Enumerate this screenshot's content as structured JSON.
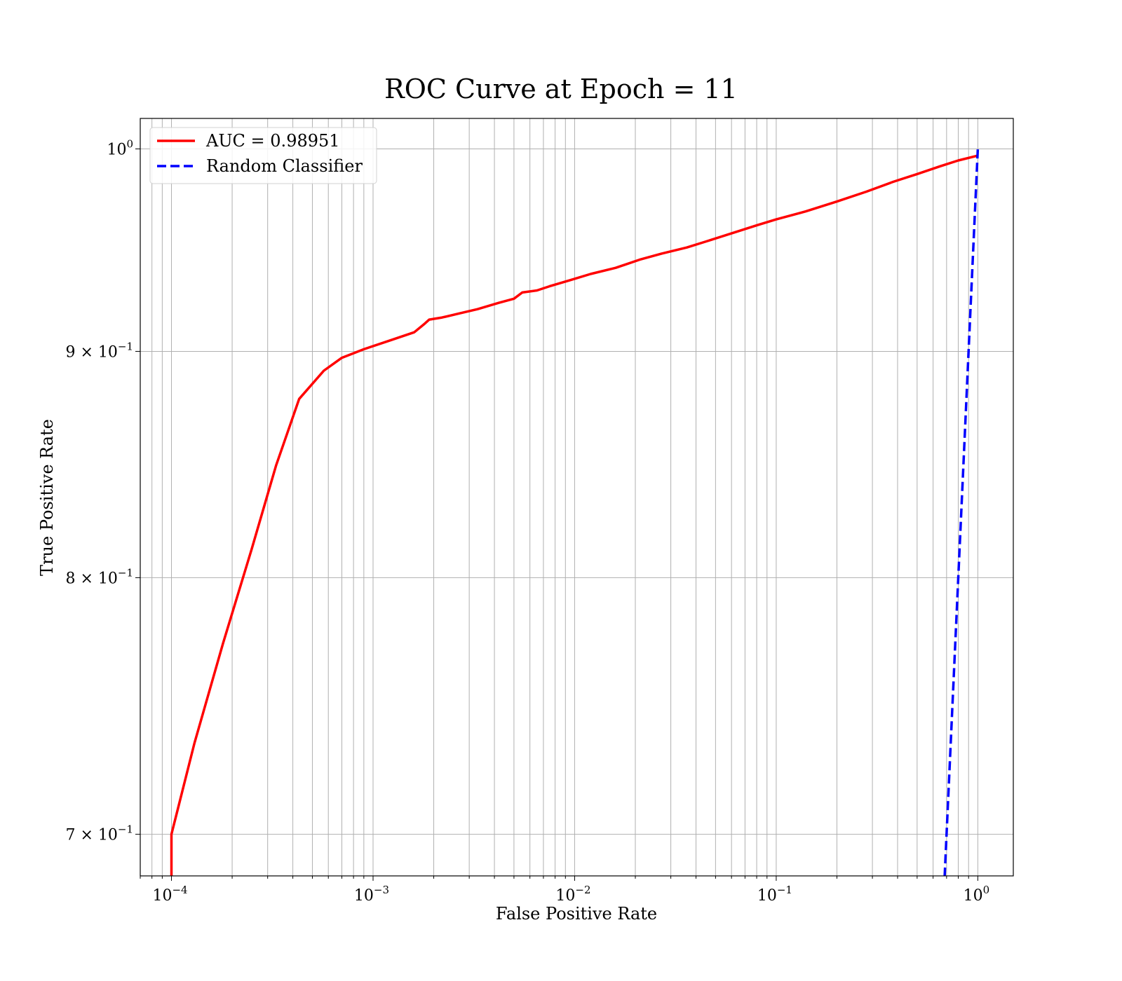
{
  "chart_data": {
    "type": "line",
    "title": "ROC Curve at Epoch = 11",
    "xlabel": "False Positive Rate",
    "ylabel": "True Positive Rate",
    "xscale": "log",
    "yscale": "log",
    "xlim": [
      7e-05,
      1.5
    ],
    "ylim": [
      0.685,
      1.016
    ],
    "grid": true,
    "legend_position": "upper-left",
    "xticks": [
      {
        "value": 0.0001,
        "base": "10",
        "exp": "−4"
      },
      {
        "value": 0.001,
        "base": "10",
        "exp": "−3"
      },
      {
        "value": 0.01,
        "base": "10",
        "exp": "−2"
      },
      {
        "value": 0.1,
        "base": "10",
        "exp": "−1"
      },
      {
        "value": 1,
        "base": "10",
        "exp": "0"
      }
    ],
    "yticks": [
      {
        "value": 1.0,
        "base": "10",
        "exp": "0"
      },
      {
        "value": 0.9,
        "base": "9 × 10",
        "exp": "−1"
      },
      {
        "value": 0.8,
        "base": "8 × 10",
        "exp": "−1"
      },
      {
        "value": 0.7,
        "base": "7 × 10",
        "exp": "−1"
      }
    ],
    "series": [
      {
        "name": "AUC = 0.98951",
        "color": "#ff0000",
        "style": "solid",
        "x": [
          0.0001,
          0.0001,
          0.0001,
          0.00013,
          0.00018,
          0.00025,
          0.00033,
          0.00043,
          0.00057,
          0.0007,
          0.0009,
          0.0012,
          0.0016,
          0.0018,
          0.0019,
          0.0022,
          0.0027,
          0.0033,
          0.0042,
          0.005,
          0.0055,
          0.0065,
          0.0075,
          0.0095,
          0.012,
          0.016,
          0.021,
          0.027,
          0.036,
          0.045,
          0.06,
          0.08,
          0.1,
          0.14,
          0.2,
          0.28,
          0.38,
          0.5,
          0.65,
          0.8,
          1.0
        ],
        "y": [
          0.685,
          0.69,
          0.7,
          0.734,
          0.773,
          0.812,
          0.848,
          0.878,
          0.891,
          0.897,
          0.901,
          0.905,
          0.909,
          0.913,
          0.915,
          0.916,
          0.918,
          0.92,
          0.923,
          0.925,
          0.928,
          0.929,
          0.931,
          0.934,
          0.937,
          0.94,
          0.944,
          0.947,
          0.95,
          0.953,
          0.957,
          0.961,
          0.964,
          0.968,
          0.973,
          0.978,
          0.983,
          0.987,
          0.991,
          0.994,
          0.9965
        ]
      },
      {
        "name": "Random Classifier",
        "color": "#0000ff",
        "style": "dashed",
        "x": [
          0.68,
          0.76,
          0.85,
          0.93,
          1.0
        ],
        "y": [
          0.68,
          0.76,
          0.85,
          0.93,
          1.0
        ]
      }
    ]
  }
}
